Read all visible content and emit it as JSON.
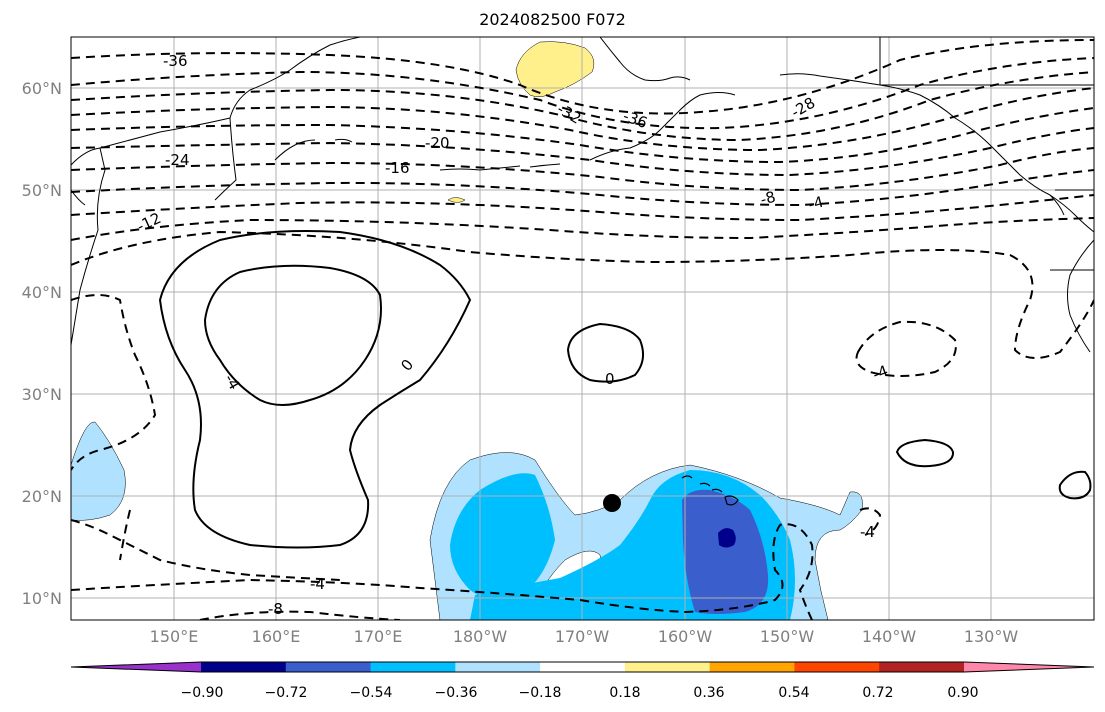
{
  "title": "2024082500 F072",
  "map": {
    "lat_labels": [
      "60°N",
      "50°N",
      "40°N",
      "30°N",
      "20°N",
      "10°N"
    ],
    "lon_labels": [
      "150°E",
      "160°E",
      "170°E",
      "180°W",
      "170°W",
      "160°W",
      "150°W",
      "140°W",
      "130°W"
    ],
    "contour_labels": [
      "-36",
      "-32",
      "-36",
      "-28",
      "-20",
      "-24",
      "-16",
      "-12",
      "-8",
      "-4",
      "-4",
      "0",
      "0",
      "-4",
      "-4",
      "-8"
    ],
    "marker": "black-dot"
  },
  "colorbar": {
    "tick_labels": [
      "−0.90",
      "−0.72",
      "−0.54",
      "−0.36",
      "−0.18",
      "0.18",
      "0.36",
      "0.54",
      "0.72",
      "0.90"
    ],
    "colors": [
      "#9932cc",
      "#00008b",
      "#3a5fcd",
      "#00bfff",
      "#b0e2ff",
      "#ffffff",
      "#fff08c",
      "#ffa500",
      "#ff4500",
      "#b22222",
      "#ff88aa"
    ]
  }
}
